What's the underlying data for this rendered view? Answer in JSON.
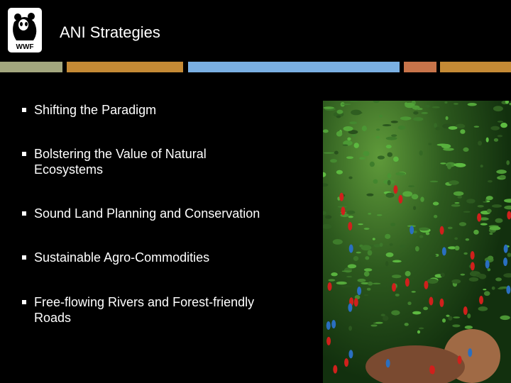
{
  "logo": {
    "text": "WWF"
  },
  "title": "ANI Strategies",
  "colors": {
    "bar1": "#a3a77e",
    "bar2": "#c58a35",
    "bar3": "#7ab0e3",
    "bar4": "#c8744a",
    "bar5": "#c58a35"
  },
  "bullets": [
    "Shifting the Paradigm",
    "Bolstering the Value of Natural Ecosystems",
    "Sound Land Planning and Conservation",
    "Sustainable Agro-Commodities",
    "Free-flowing Rivers and Forest-friendly Roads"
  ]
}
